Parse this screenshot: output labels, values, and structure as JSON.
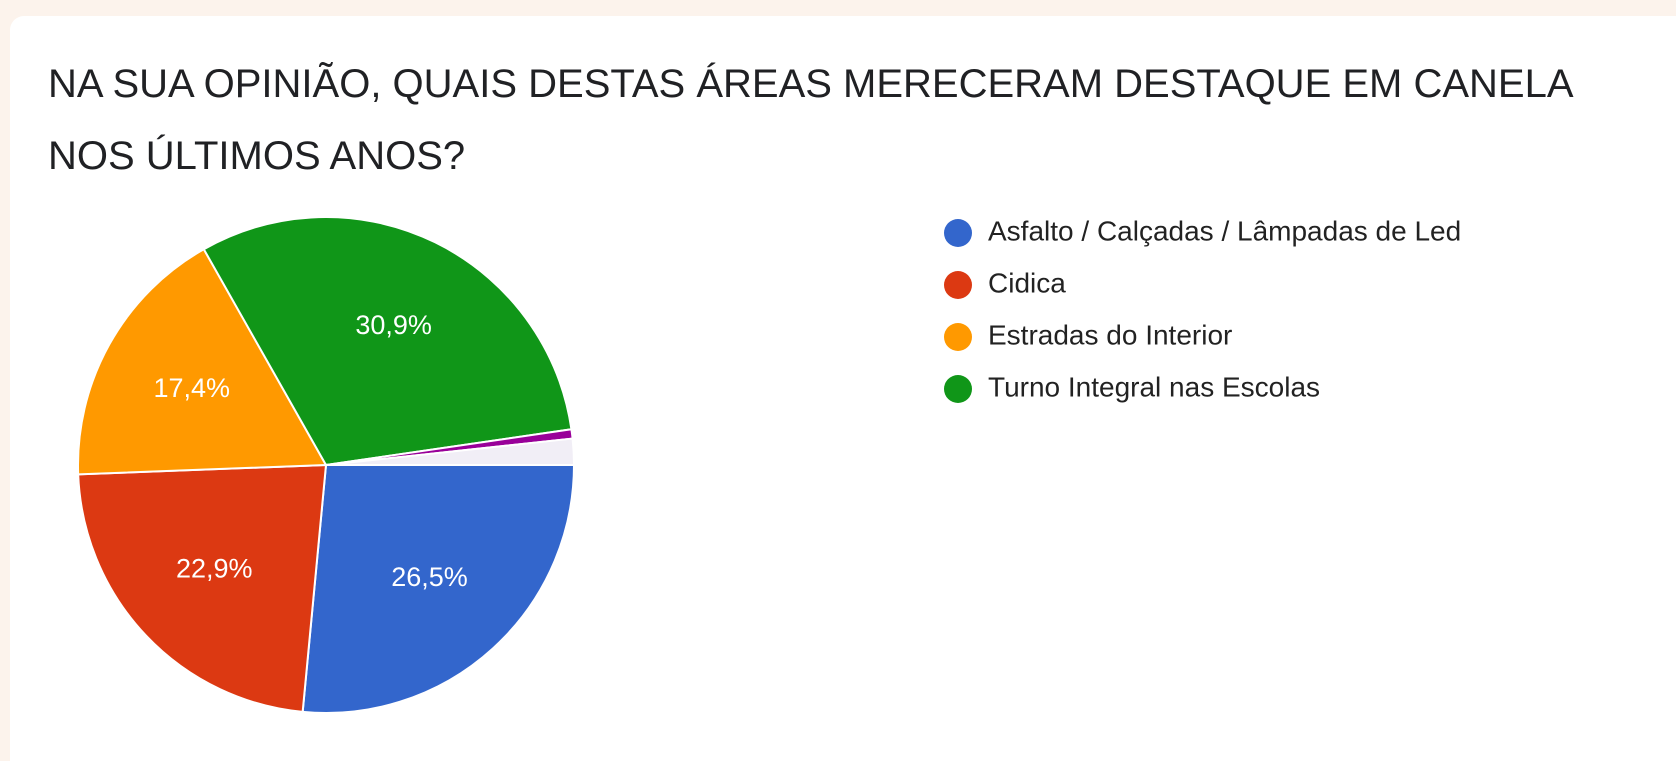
{
  "chart_data": {
    "type": "pie",
    "title": "NA SUA OPINIÃO, QUAIS DESTAS ÁREAS MERECERAM DESTAQUE EM CANELA NOS ÚLTIMOS ANOS?",
    "categories": [
      "Asfalto / Calçadas / Lâmpadas de Led",
      "Cidica",
      "Estradas do Interior",
      "Turno Integral nas Escolas",
      null,
      null
    ],
    "values": [
      26.5,
      22.9,
      17.4,
      30.9,
      0.6,
      1.7
    ],
    "value_labels": [
      "26,5%",
      "22,9%",
      "17,4%",
      "30,9%",
      null,
      null
    ],
    "colors": [
      "#3366cc",
      "#dc3912",
      "#ff9900",
      "#109618",
      "#990099",
      "#f1eef6"
    ],
    "legend": "right"
  }
}
